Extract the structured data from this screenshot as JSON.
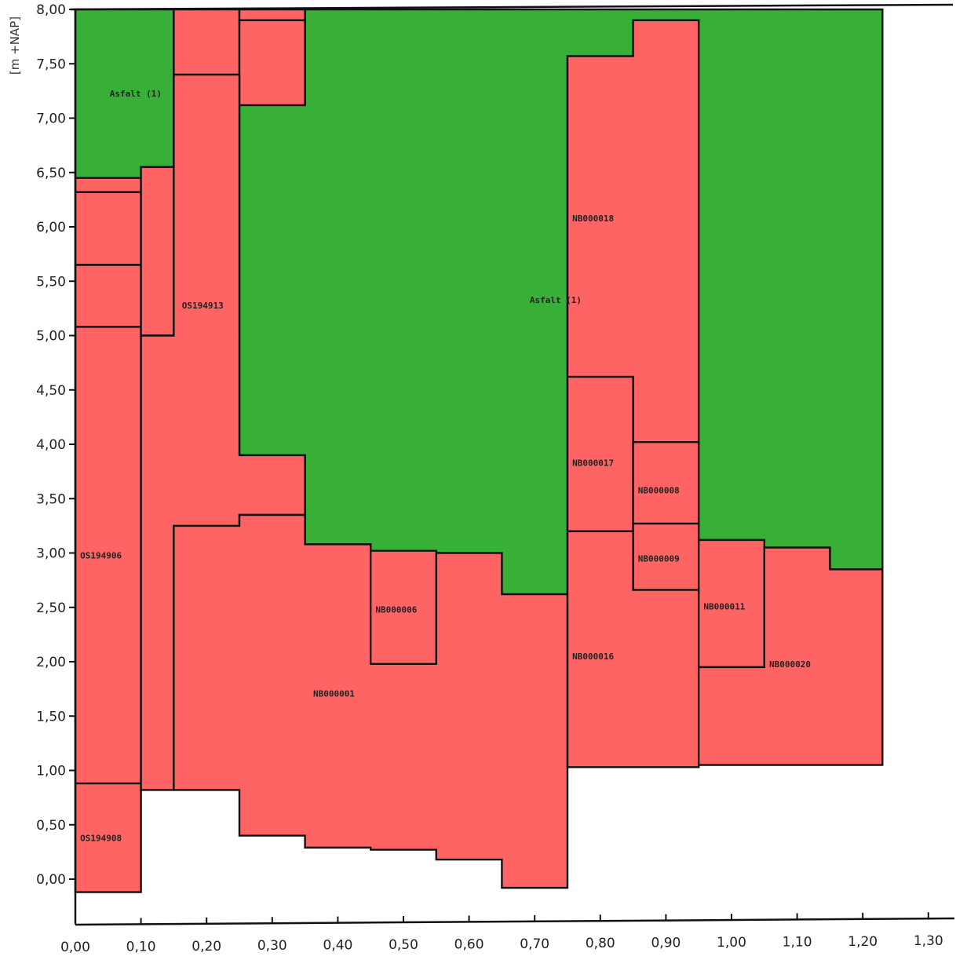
{
  "chart_data": {
    "type": "area",
    "title": "",
    "xlabel": "",
    "ylabel": "[m +NAP]",
    "xlim": [
      0,
      1.3
    ],
    "ylim": [
      -0.4,
      8.0
    ],
    "grid": false,
    "x_ticks": [
      {
        "value": 0.0,
        "label": "0,00"
      },
      {
        "value": 0.1,
        "label": "0,10"
      },
      {
        "value": 0.2,
        "label": "0,20"
      },
      {
        "value": 0.3,
        "label": "0,30"
      },
      {
        "value": 0.4,
        "label": "0,40"
      },
      {
        "value": 0.5,
        "label": "0,50"
      },
      {
        "value": 0.6,
        "label": "0,60"
      },
      {
        "value": 0.7,
        "label": "0,70"
      },
      {
        "value": 0.8,
        "label": "0,80"
      },
      {
        "value": 0.9,
        "label": "0,90"
      },
      {
        "value": 1.0,
        "label": "1,00"
      },
      {
        "value": 1.1,
        "label": "1,10"
      },
      {
        "value": 1.2,
        "label": "1,20"
      },
      {
        "value": 1.3,
        "label": "1,30"
      }
    ],
    "y_ticks": [
      {
        "value": 8.0,
        "label": "8,00"
      },
      {
        "value": 7.5,
        "label": "7,50"
      },
      {
        "value": 7.0,
        "label": "7,00"
      },
      {
        "value": 6.5,
        "label": "6,50"
      },
      {
        "value": 6.0,
        "label": "6,00"
      },
      {
        "value": 5.5,
        "label": "5,50"
      },
      {
        "value": 5.0,
        "label": "5,00"
      },
      {
        "value": 4.5,
        "label": "4,50"
      },
      {
        "value": 4.0,
        "label": "4,00"
      },
      {
        "value": 3.5,
        "label": "3,50"
      },
      {
        "value": 3.0,
        "label": "3,00"
      },
      {
        "value": 2.5,
        "label": "2,50"
      },
      {
        "value": 2.0,
        "label": "2,00"
      },
      {
        "value": 1.5,
        "label": "1,50"
      },
      {
        "value": 1.0,
        "label": "1,00"
      },
      {
        "value": 0.5,
        "label": "0,50"
      },
      {
        "value": 0.0,
        "label": "0,00"
      }
    ],
    "colors": {
      "Asfalt": "#38b038",
      "sample": "#ff6464",
      "outline": "#111111"
    },
    "regions": [
      {
        "kind": "Asfalt",
        "name": "Asfalt (1)",
        "label": {
          "x": 0.05,
          "y": 7.2
        },
        "polygon": [
          [
            0.0,
            8.0
          ],
          [
            0.15,
            8.0
          ],
          [
            0.15,
            6.55
          ],
          [
            0.1,
            6.55
          ],
          [
            0.1,
            6.45
          ],
          [
            0.0,
            6.45
          ]
        ]
      },
      {
        "kind": "Asfalt",
        "name": "Asfalt (1)",
        "label": {
          "x": 0.69,
          "y": 5.3
        },
        "polygon": [
          [
            0.35,
            8.0
          ],
          [
            1.23,
            8.0
          ],
          [
            1.23,
            2.85
          ],
          [
            1.15,
            2.85
          ],
          [
            1.15,
            3.05
          ],
          [
            1.05,
            3.05
          ],
          [
            1.05,
            3.12
          ],
          [
            0.95,
            3.12
          ],
          [
            0.95,
            7.9
          ],
          [
            0.85,
            7.9
          ],
          [
            0.85,
            7.57
          ],
          [
            0.75,
            7.57
          ],
          [
            0.75,
            2.62
          ],
          [
            0.65,
            2.62
          ],
          [
            0.65,
            3.0
          ],
          [
            0.55,
            3.0
          ],
          [
            0.55,
            3.02
          ],
          [
            0.45,
            3.02
          ],
          [
            0.45,
            3.08
          ],
          [
            0.35,
            3.08
          ],
          [
            0.35,
            3.9
          ],
          [
            0.25,
            3.9
          ],
          [
            0.25,
            7.12
          ],
          [
            0.35,
            7.12
          ]
        ]
      },
      {
        "kind": "sample",
        "name": "",
        "polygon": [
          [
            0.0,
            6.45
          ],
          [
            0.1,
            6.45
          ],
          [
            0.1,
            6.32
          ],
          [
            0.0,
            6.32
          ]
        ]
      },
      {
        "kind": "sample",
        "name": "",
        "polygon": [
          [
            0.0,
            6.32
          ],
          [
            0.1,
            6.32
          ],
          [
            0.1,
            5.65
          ],
          [
            0.0,
            5.65
          ]
        ]
      },
      {
        "kind": "sample",
        "name": "",
        "polygon": [
          [
            0.0,
            5.65
          ],
          [
            0.1,
            5.65
          ],
          [
            0.1,
            5.08
          ],
          [
            0.0,
            5.08
          ]
        ]
      },
      {
        "kind": "sample",
        "name": "OS194906",
        "label": {
          "x": 0.005,
          "y": 2.95
        },
        "polygon": [
          [
            0.0,
            5.08
          ],
          [
            0.1,
            5.08
          ],
          [
            0.1,
            0.88
          ],
          [
            0.0,
            0.88
          ]
        ]
      },
      {
        "kind": "sample",
        "name": "OS194908",
        "label": {
          "x": 0.005,
          "y": 0.35
        },
        "polygon": [
          [
            0.0,
            0.88
          ],
          [
            0.1,
            0.88
          ],
          [
            0.1,
            -0.12
          ],
          [
            0.0,
            -0.12
          ]
        ]
      },
      {
        "kind": "sample",
        "name": "",
        "polygon": [
          [
            0.1,
            6.55
          ],
          [
            0.15,
            6.55
          ],
          [
            0.15,
            5.0
          ],
          [
            0.1,
            5.0
          ]
        ]
      },
      {
        "kind": "sample",
        "name": "",
        "polygon": [
          [
            0.15,
            8.0
          ],
          [
            0.25,
            8.0
          ],
          [
            0.25,
            7.4
          ],
          [
            0.15,
            7.4
          ]
        ]
      },
      {
        "kind": "sample",
        "name": "",
        "polygon": [
          [
            0.25,
            8.0
          ],
          [
            0.35,
            8.0
          ],
          [
            0.35,
            7.9
          ],
          [
            0.25,
            7.9
          ]
        ]
      },
      {
        "kind": "sample",
        "name": "",
        "polygon": [
          [
            0.25,
            7.9
          ],
          [
            0.35,
            7.9
          ],
          [
            0.35,
            7.12
          ],
          [
            0.25,
            7.12
          ]
        ]
      },
      {
        "kind": "sample",
        "name": "OS194913",
        "label": {
          "x": 0.16,
          "y": 5.25
        },
        "polygon": [
          [
            0.1,
            5.0
          ],
          [
            0.15,
            5.0
          ],
          [
            0.15,
            7.4
          ],
          [
            0.25,
            7.4
          ],
          [
            0.25,
            3.9
          ],
          [
            0.35,
            3.9
          ],
          [
            0.35,
            3.35
          ],
          [
            0.25,
            3.35
          ],
          [
            0.25,
            3.25
          ],
          [
            0.15,
            3.25
          ],
          [
            0.15,
            0.82
          ],
          [
            0.1,
            0.82
          ]
        ]
      },
      {
        "kind": "sample",
        "name": "NB000001",
        "label": {
          "x": 0.36,
          "y": 1.68
        },
        "polygon": [
          [
            0.15,
            3.25
          ],
          [
            0.25,
            3.25
          ],
          [
            0.25,
            3.35
          ],
          [
            0.35,
            3.35
          ],
          [
            0.35,
            3.08
          ],
          [
            0.45,
            3.08
          ],
          [
            0.45,
            1.98
          ],
          [
            0.55,
            1.98
          ],
          [
            0.55,
            3.0
          ],
          [
            0.65,
            3.0
          ],
          [
            0.65,
            2.62
          ],
          [
            0.75,
            2.62
          ],
          [
            0.75,
            -0.08
          ],
          [
            0.65,
            -0.08
          ],
          [
            0.65,
            0.18
          ],
          [
            0.55,
            0.18
          ],
          [
            0.55,
            0.27
          ],
          [
            0.45,
            0.27
          ],
          [
            0.45,
            0.29
          ],
          [
            0.35,
            0.29
          ],
          [
            0.35,
            0.4
          ],
          [
            0.25,
            0.4
          ],
          [
            0.25,
            0.82
          ],
          [
            0.15,
            0.82
          ]
        ]
      },
      {
        "kind": "sample",
        "name": "NB000006",
        "label": {
          "x": 0.455,
          "y": 2.45
        },
        "polygon": [
          [
            0.45,
            3.02
          ],
          [
            0.55,
            3.02
          ],
          [
            0.55,
            1.98
          ],
          [
            0.45,
            1.98
          ]
        ]
      },
      {
        "kind": "sample",
        "name": "NB000018",
        "label": {
          "x": 0.755,
          "y": 6.05
        },
        "polygon": [
          [
            0.75,
            7.57
          ],
          [
            0.85,
            7.57
          ],
          [
            0.85,
            7.9
          ],
          [
            0.95,
            7.9
          ],
          [
            0.95,
            4.02
          ],
          [
            0.85,
            4.02
          ],
          [
            0.85,
            4.62
          ],
          [
            0.75,
            4.62
          ]
        ]
      },
      {
        "kind": "sample",
        "name": "NB000017",
        "label": {
          "x": 0.755,
          "y": 3.8
        },
        "polygon": [
          [
            0.75,
            4.62
          ],
          [
            0.85,
            4.62
          ],
          [
            0.85,
            3.2
          ],
          [
            0.75,
            3.2
          ]
        ]
      },
      {
        "kind": "sample",
        "name": "NB000008",
        "label": {
          "x": 0.855,
          "y": 3.55
        },
        "polygon": [
          [
            0.85,
            4.02
          ],
          [
            0.95,
            4.02
          ],
          [
            0.95,
            3.27
          ],
          [
            0.85,
            3.27
          ]
        ]
      },
      {
        "kind": "sample",
        "name": "NB000009",
        "label": {
          "x": 0.855,
          "y": 2.92
        },
        "polygon": [
          [
            0.85,
            3.27
          ],
          [
            0.95,
            3.27
          ],
          [
            0.95,
            2.66
          ],
          [
            0.85,
            2.66
          ]
        ]
      },
      {
        "kind": "sample",
        "name": "NB000016",
        "label": {
          "x": 0.755,
          "y": 2.02
        },
        "polygon": [
          [
            0.75,
            3.2
          ],
          [
            0.85,
            3.2
          ],
          [
            0.85,
            2.66
          ],
          [
            0.95,
            2.66
          ],
          [
            0.95,
            1.03
          ],
          [
            0.75,
            1.03
          ]
        ]
      },
      {
        "kind": "sample",
        "name": "NB000011",
        "label": {
          "x": 0.955,
          "y": 2.48
        },
        "polygon": [
          [
            0.95,
            3.12
          ],
          [
            1.05,
            3.12
          ],
          [
            1.05,
            1.95
          ],
          [
            0.95,
            1.95
          ]
        ]
      },
      {
        "kind": "sample",
        "name": "NB000020",
        "label": {
          "x": 1.055,
          "y": 1.95
        },
        "polygon": [
          [
            1.05,
            3.05
          ],
          [
            1.15,
            3.05
          ],
          [
            1.15,
            2.85
          ],
          [
            1.23,
            2.85
          ],
          [
            1.23,
            1.05
          ],
          [
            0.95,
            1.05
          ],
          [
            0.95,
            1.95
          ],
          [
            1.05,
            1.95
          ]
        ]
      }
    ]
  }
}
